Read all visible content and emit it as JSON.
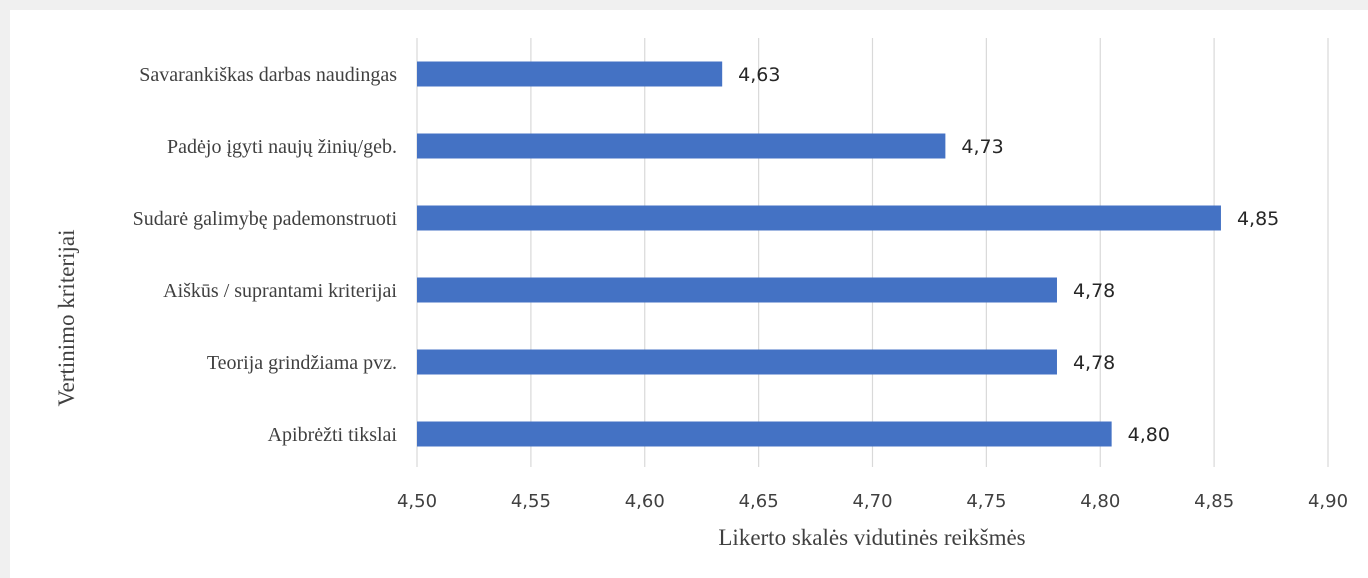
{
  "chart_data": {
    "type": "bar",
    "orientation": "horizontal",
    "categories": [
      "Savarankiškas darbas naudingas",
      "Padėjo įgyti naujų žinių/geb.",
      "Sudarė galimybę pademonstruoti",
      "Aiškūs / suprantami kriterijai",
      "Teorija grindžiama pvz.",
      "Apibrėžti tikslai"
    ],
    "values": [
      4.634,
      4.732,
      4.853,
      4.781,
      4.781,
      4.805
    ],
    "data_labels": [
      "4,63",
      "4,73",
      "4,85",
      "4,78",
      "4,78",
      "4,80"
    ],
    "xlabel": "Likerto skalės vidutinės reikšmės",
    "ylabel": "Vertinimo kriterijai",
    "xlim": [
      4.5,
      4.9
    ],
    "x_ticks": [
      4.5,
      4.55,
      4.6,
      4.65,
      4.7,
      4.75,
      4.8,
      4.85,
      4.9
    ],
    "x_tick_labels": [
      "4,50",
      "4,55",
      "4,60",
      "4,65",
      "4,70",
      "4,75",
      "4,80",
      "4,85",
      "4,90"
    ],
    "grid": "vertical",
    "bar_color": "#4472c4",
    "grid_color": "#d9d9d9"
  }
}
